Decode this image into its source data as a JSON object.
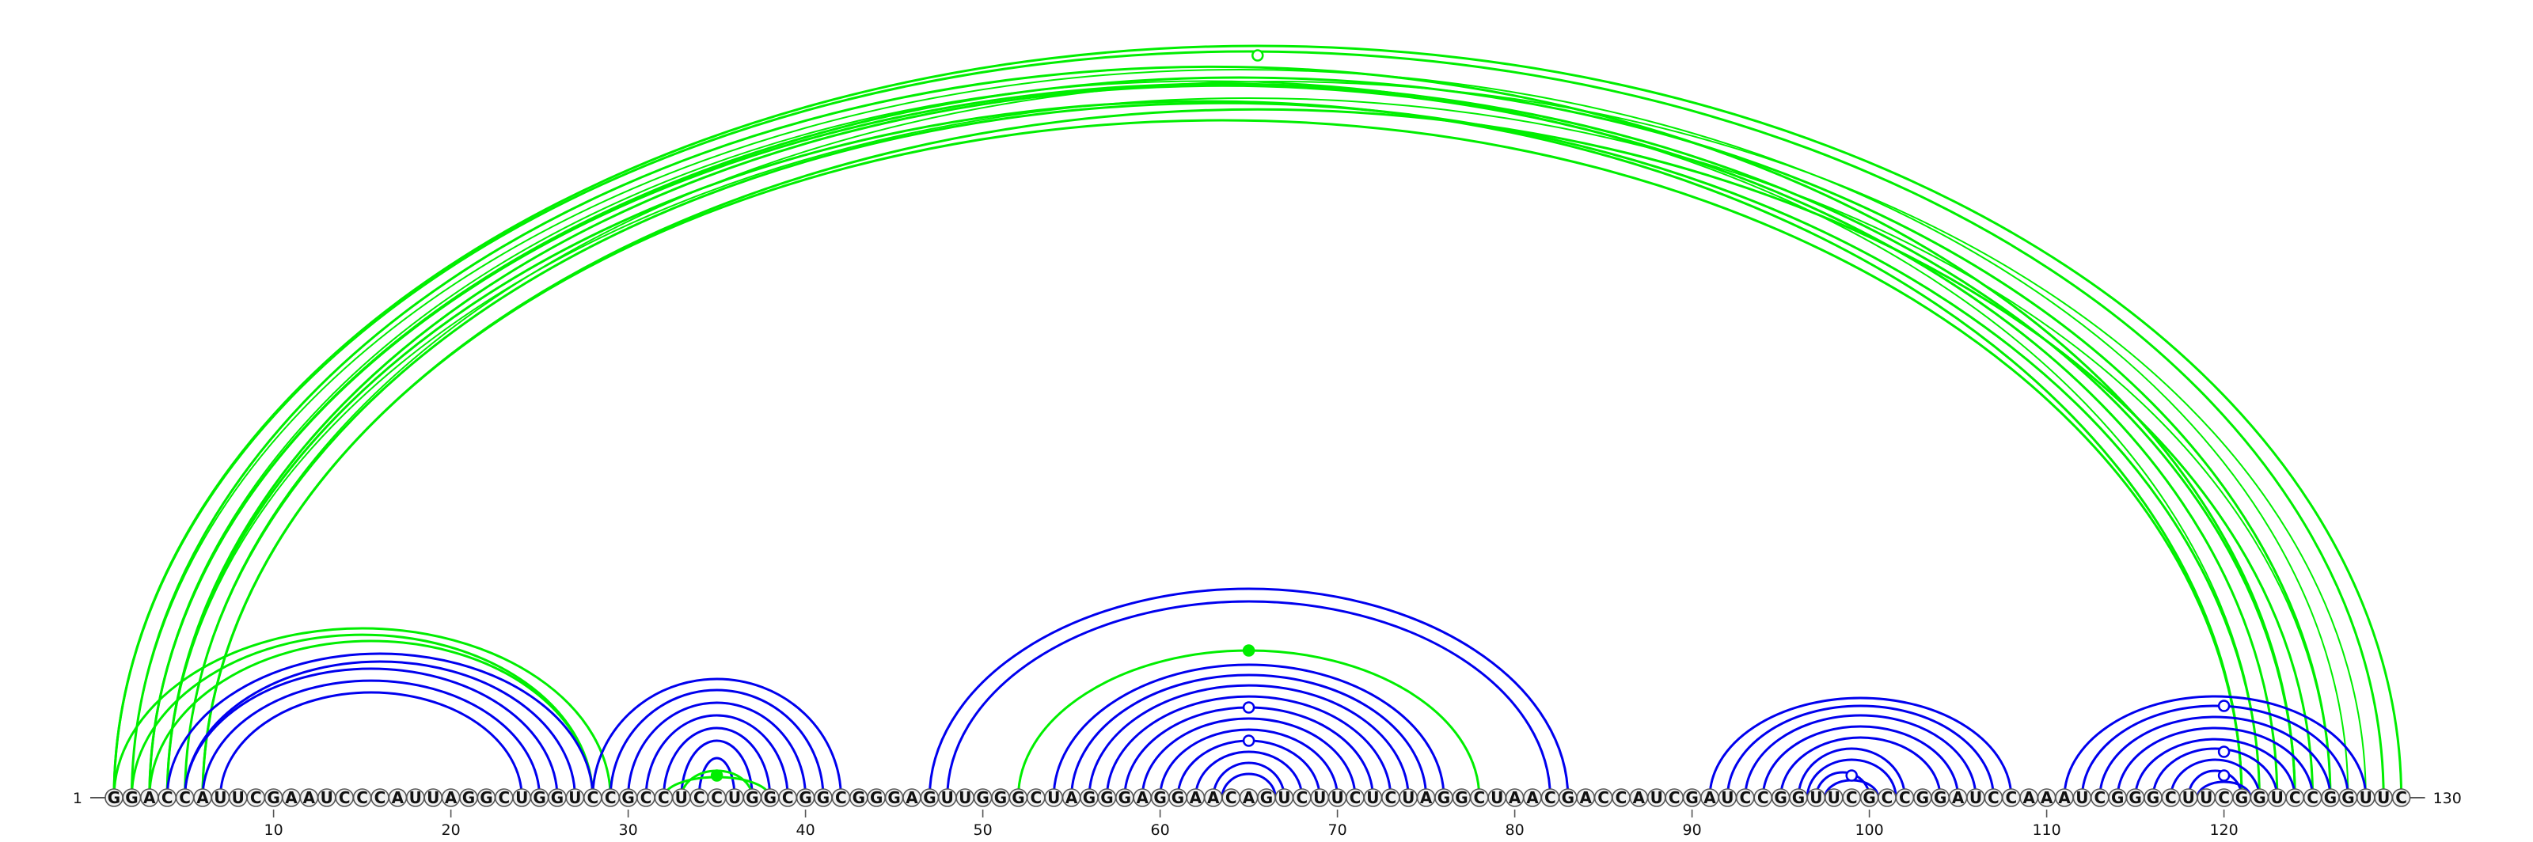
{
  "diagram": {
    "type": "rna-arc-diagram",
    "sequence": "GGACCAUUCGAAUCCCAUUAGGCUGGUCCGCCUCCUGGCGGCGGGAGUUGGGCUAGGGAGGAACAGUCUUCUCUAGGCUAACGACCAUCGAUCCGGUUCGCCGGAUCCAAAUCGGGCUUCGGUCCGGUUC",
    "length": 130,
    "start_label": "1",
    "end_label": "130",
    "ticks": [
      "10",
      "20",
      "30",
      "40",
      "50",
      "60",
      "70",
      "80",
      "90",
      "100",
      "110",
      "120"
    ],
    "colors": {
      "background": "#ffffff",
      "long_range_arcs": "#00ee00",
      "local_arcs": "#0000ee",
      "backbone": "#555555",
      "nucleotide_fill": "#f2f2f2",
      "nucleotide_stroke": "#555555"
    },
    "arc_groups": [
      {
        "color": "green",
        "center": 65.5,
        "span_from": 1,
        "span_to": 130,
        "count": 14,
        "marker": "open"
      },
      {
        "color": "green",
        "center": 15,
        "span_from": 1,
        "span_to": 29,
        "count": 3
      },
      {
        "color": "blue",
        "center": 15,
        "span_from": 4,
        "span_to": 28,
        "count": 5
      },
      {
        "color": "blue",
        "center": 35,
        "span_from": 28,
        "span_to": 42,
        "count": 7
      },
      {
        "color": "green",
        "center": 35,
        "span_from": 33,
        "span_to": 37,
        "count": 2,
        "marker": "filled"
      },
      {
        "color": "blue",
        "center": 65,
        "span_from": 47,
        "span_to": 83,
        "count": 2
      },
      {
        "color": "green",
        "center": 65,
        "span_from": 52,
        "span_to": 78,
        "count": 1,
        "marker": "filled"
      },
      {
        "color": "blue",
        "center": 65,
        "span_from": 54,
        "span_to": 76,
        "count": 11,
        "markers": [
          "open",
          "open"
        ]
      },
      {
        "color": "blue",
        "center": 99,
        "span_from": 91,
        "span_to": 108,
        "count": 9,
        "marker": "open"
      },
      {
        "color": "blue",
        "center": 120,
        "span_from": 111,
        "span_to": 128,
        "count": 9,
        "markers": [
          "open",
          "open",
          "open"
        ]
      }
    ]
  }
}
